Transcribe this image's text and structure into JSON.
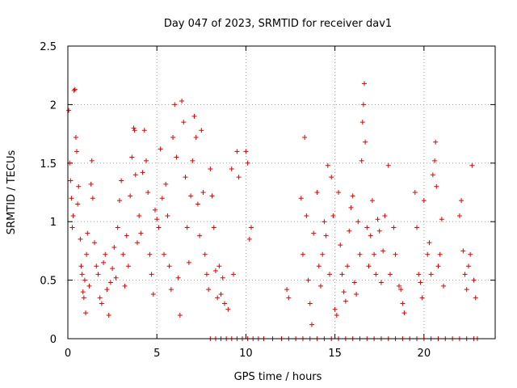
{
  "chart_data": {
    "type": "scatter",
    "title": "Day 047 of 2023, SRMTID for receiver dav1",
    "xlabel": "GPS time / hours",
    "ylabel": "SRMTID / TECUs",
    "xlim": [
      0,
      24
    ],
    "ylim": [
      0,
      2.5
    ],
    "xticks": [
      0,
      5,
      10,
      15,
      20
    ],
    "yticks": [
      0,
      0.5,
      1,
      1.5,
      2,
      2.5
    ],
    "xtick_labels": [
      "0",
      "5",
      "10",
      "15",
      "20"
    ],
    "ytick_labels": [
      "0",
      "0.5",
      "1",
      "1.5",
      "2",
      "2.5"
    ],
    "grid": true,
    "marker": "+",
    "color": "#e00000",
    "series": [
      {
        "name": "SRMTID",
        "points": [
          [
            0.05,
            1.95
          ],
          [
            0.1,
            1.5
          ],
          [
            0.15,
            1.35
          ],
          [
            0.2,
            1.2
          ],
          [
            0.25,
            0.95
          ],
          [
            0.3,
            1.05
          ],
          [
            0.35,
            2.12
          ],
          [
            0.4,
            2.13
          ],
          [
            0.45,
            1.72
          ],
          [
            0.5,
            1.6
          ],
          [
            0.55,
            1.15
          ],
          [
            0.6,
            1.3
          ],
          [
            0.7,
            0.85
          ],
          [
            0.75,
            0.62
          ],
          [
            0.8,
            0.55
          ],
          [
            0.85,
            0.4
          ],
          [
            0.9,
            0.35
          ],
          [
            0.95,
            0.5
          ],
          [
            1.0,
            0.22
          ],
          [
            1.05,
            0.72
          ],
          [
            1.1,
            0.9
          ],
          [
            1.2,
            0.45
          ],
          [
            1.3,
            1.32
          ],
          [
            1.35,
            1.52
          ],
          [
            1.4,
            1.2
          ],
          [
            1.5,
            0.82
          ],
          [
            1.6,
            0.62
          ],
          [
            1.7,
            0.55
          ],
          [
            1.8,
            0.35
          ],
          [
            1.9,
            0.3
          ],
          [
            2.0,
            0.65
          ],
          [
            2.1,
            0.72
          ],
          [
            2.2,
            0.42
          ],
          [
            2.3,
            0.2
          ],
          [
            2.4,
            0.48
          ],
          [
            2.5,
            0.6
          ],
          [
            2.6,
            0.78
          ],
          [
            2.7,
            0.52
          ],
          [
            2.8,
            0.95
          ],
          [
            2.9,
            1.18
          ],
          [
            3.0,
            1.35
          ],
          [
            3.1,
            0.72
          ],
          [
            3.2,
            0.45
          ],
          [
            3.3,
            0.88
          ],
          [
            3.4,
            0.62
          ],
          [
            3.5,
            1.22
          ],
          [
            3.6,
            1.55
          ],
          [
            3.7,
            1.8
          ],
          [
            3.75,
            1.78
          ],
          [
            3.8,
            1.4
          ],
          [
            3.9,
            0.82
          ],
          [
            4.0,
            1.05
          ],
          [
            4.1,
            0.9
          ],
          [
            4.2,
            1.42
          ],
          [
            4.3,
            1.78
          ],
          [
            4.4,
            1.52
          ],
          [
            4.5,
            1.25
          ],
          [
            4.6,
            0.72
          ],
          [
            4.7,
            0.55
          ],
          [
            4.8,
            0.38
          ],
          [
            4.9,
            1.1
          ],
          [
            5.0,
            1.02
          ],
          [
            5.1,
            0.95
          ],
          [
            5.2,
            1.62
          ],
          [
            5.3,
            1.2
          ],
          [
            5.4,
            0.72
          ],
          [
            5.5,
            1.32
          ],
          [
            5.6,
            1.05
          ],
          [
            5.7,
            0.62
          ],
          [
            5.8,
            0.42
          ],
          [
            5.9,
            1.72
          ],
          [
            6.0,
            2.0
          ],
          [
            6.1,
            1.55
          ],
          [
            6.2,
            0.52
          ],
          [
            6.3,
            0.2
          ],
          [
            6.4,
            2.03
          ],
          [
            6.5,
            1.85
          ],
          [
            6.6,
            1.38
          ],
          [
            6.7,
            0.95
          ],
          [
            6.8,
            0.65
          ],
          [
            6.9,
            1.22
          ],
          [
            7.0,
            1.52
          ],
          [
            7.1,
            1.9
          ],
          [
            7.2,
            1.72
          ],
          [
            7.3,
            1.15
          ],
          [
            7.4,
            0.88
          ],
          [
            7.5,
            1.78
          ],
          [
            7.6,
            1.25
          ],
          [
            7.7,
            0.72
          ],
          [
            7.8,
            0.55
          ],
          [
            7.9,
            0.42
          ],
          [
            8.0,
            1.45
          ],
          [
            8.1,
            1.22
          ],
          [
            8.2,
            0.95
          ],
          [
            8.3,
            0.58
          ],
          [
            8.4,
            0.35
          ],
          [
            8.5,
            0.62
          ],
          [
            8.6,
            0.38
          ],
          [
            8.7,
            0.52
          ],
          [
            8.8,
            0.3
          ],
          [
            9.0,
            0.25
          ],
          [
            9.2,
            1.45
          ],
          [
            9.3,
            0.55
          ],
          [
            9.5,
            1.6
          ],
          [
            9.6,
            1.38
          ],
          [
            10.0,
            1.6
          ],
          [
            10.1,
            1.5
          ],
          [
            10.2,
            0.85
          ],
          [
            10.3,
            0.95
          ],
          [
            12.3,
            0.42
          ],
          [
            12.4,
            0.35
          ],
          [
            13.1,
            1.2
          ],
          [
            13.2,
            0.72
          ],
          [
            13.3,
            1.72
          ],
          [
            13.4,
            1.05
          ],
          [
            13.5,
            0.5
          ],
          [
            13.6,
            0.3
          ],
          [
            13.7,
            0.12
          ],
          [
            13.8,
            0.9
          ],
          [
            14.0,
            1.25
          ],
          [
            14.1,
            0.62
          ],
          [
            14.2,
            0.45
          ],
          [
            14.3,
            0.72
          ],
          [
            14.4,
            1.0
          ],
          [
            14.5,
            0.88
          ],
          [
            14.6,
            1.48
          ],
          [
            14.7,
            0.55
          ],
          [
            14.8,
            1.38
          ],
          [
            14.9,
            1.05
          ],
          [
            15.0,
            0.25
          ],
          [
            15.1,
            0.2
          ],
          [
            15.2,
            1.25
          ],
          [
            15.3,
            0.8
          ],
          [
            15.4,
            0.55
          ],
          [
            15.5,
            0.4
          ],
          [
            15.6,
            0.32
          ],
          [
            15.7,
            0.62
          ],
          [
            15.8,
            0.92
          ],
          [
            15.9,
            1.12
          ],
          [
            16.0,
            1.22
          ],
          [
            16.1,
            0.48
          ],
          [
            16.2,
            0.38
          ],
          [
            16.3,
            1.0
          ],
          [
            16.4,
            0.72
          ],
          [
            16.5,
            1.52
          ],
          [
            16.55,
            1.85
          ],
          [
            16.6,
            2.0
          ],
          [
            16.65,
            2.18
          ],
          [
            16.7,
            1.68
          ],
          [
            16.8,
            0.95
          ],
          [
            16.9,
            0.62
          ],
          [
            17.0,
            0.88
          ],
          [
            17.1,
            1.18
          ],
          [
            17.2,
            0.72
          ],
          [
            17.3,
            0.55
          ],
          [
            17.4,
            1.02
          ],
          [
            17.5,
            0.92
          ],
          [
            17.6,
            0.48
          ],
          [
            17.7,
            0.75
          ],
          [
            17.8,
            1.05
          ],
          [
            18.0,
            1.48
          ],
          [
            18.1,
            0.55
          ],
          [
            18.3,
            0.95
          ],
          [
            18.4,
            0.72
          ],
          [
            18.6,
            0.45
          ],
          [
            18.7,
            0.42
          ],
          [
            18.8,
            0.3
          ],
          [
            18.9,
            0.22
          ],
          [
            19.5,
            1.25
          ],
          [
            19.6,
            0.95
          ],
          [
            19.7,
            0.55
          ],
          [
            19.8,
            0.48
          ],
          [
            19.9,
            0.35
          ],
          [
            20.0,
            1.18
          ],
          [
            20.2,
            0.72
          ],
          [
            20.3,
            0.82
          ],
          [
            20.4,
            0.55
          ],
          [
            20.5,
            1.4
          ],
          [
            20.6,
            1.52
          ],
          [
            20.65,
            1.68
          ],
          [
            20.7,
            1.3
          ],
          [
            20.8,
            0.62
          ],
          [
            20.9,
            0.72
          ],
          [
            21.0,
            1.02
          ],
          [
            21.1,
            0.45
          ],
          [
            22.0,
            1.05
          ],
          [
            22.1,
            1.18
          ],
          [
            22.2,
            0.75
          ],
          [
            22.3,
            0.55
          ],
          [
            22.4,
            0.42
          ],
          [
            22.5,
            0.62
          ],
          [
            22.6,
            0.72
          ],
          [
            22.7,
            1.48
          ],
          [
            22.8,
            0.5
          ],
          [
            22.9,
            0.35
          ],
          [
            8.0,
            0.0
          ],
          [
            8.3,
            0.0
          ],
          [
            8.6,
            0.0
          ],
          [
            8.9,
            0.0
          ],
          [
            9.2,
            0.0
          ],
          [
            9.5,
            0.0
          ],
          [
            9.8,
            0.0
          ],
          [
            10.1,
            0.0
          ],
          [
            10.4,
            0.0
          ],
          [
            10.7,
            0.0
          ],
          [
            11.0,
            0.0
          ],
          [
            11.5,
            0.0
          ],
          [
            12.0,
            0.0
          ],
          [
            12.4,
            0.0
          ],
          [
            12.8,
            0.0
          ],
          [
            13.2,
            0.0
          ],
          [
            13.6,
            0.0
          ],
          [
            14.0,
            0.0
          ],
          [
            14.4,
            0.0
          ],
          [
            14.8,
            0.0
          ],
          [
            15.2,
            0.0
          ],
          [
            15.6,
            0.0
          ],
          [
            16.0,
            0.0
          ],
          [
            16.4,
            0.0
          ],
          [
            16.8,
            0.0
          ],
          [
            17.2,
            0.0
          ],
          [
            17.6,
            0.0
          ],
          [
            18.0,
            0.0
          ],
          [
            18.4,
            0.0
          ],
          [
            18.8,
            0.0
          ],
          [
            19.2,
            0.0
          ],
          [
            19.6,
            0.0
          ],
          [
            20.0,
            0.0
          ],
          [
            20.4,
            0.0
          ],
          [
            20.8,
            0.0
          ],
          [
            21.2,
            0.0
          ],
          [
            21.6,
            0.0
          ],
          [
            22.0,
            0.0
          ],
          [
            22.4,
            0.0
          ],
          [
            22.8,
            0.0
          ],
          [
            23.0,
            0.0
          ]
        ]
      }
    ]
  }
}
